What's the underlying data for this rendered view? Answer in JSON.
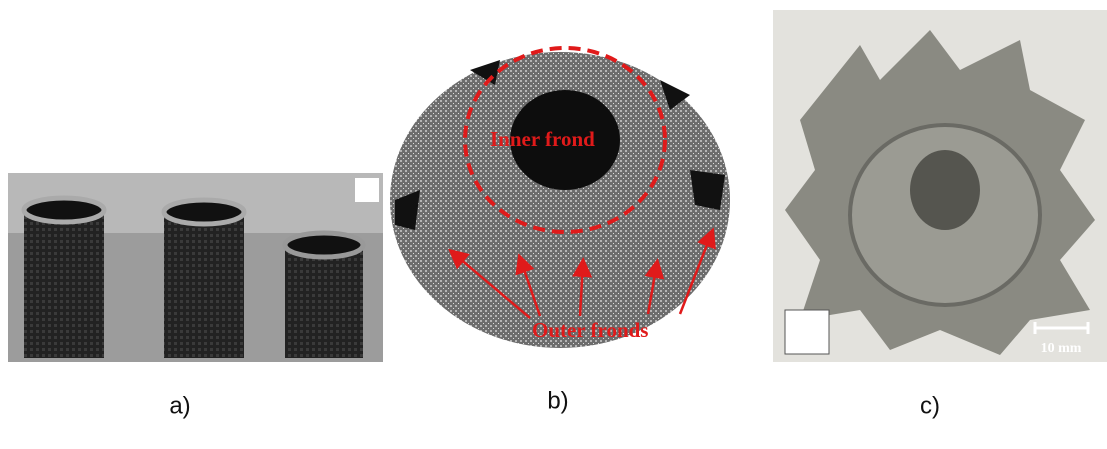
{
  "panels": [
    {
      "label": "a)"
    },
    {
      "label": "b)",
      "annotations": [
        "Inner frond",
        "Outer fronds"
      ]
    },
    {
      "label": "c)",
      "scale_bar": "10 mm"
    }
  ]
}
